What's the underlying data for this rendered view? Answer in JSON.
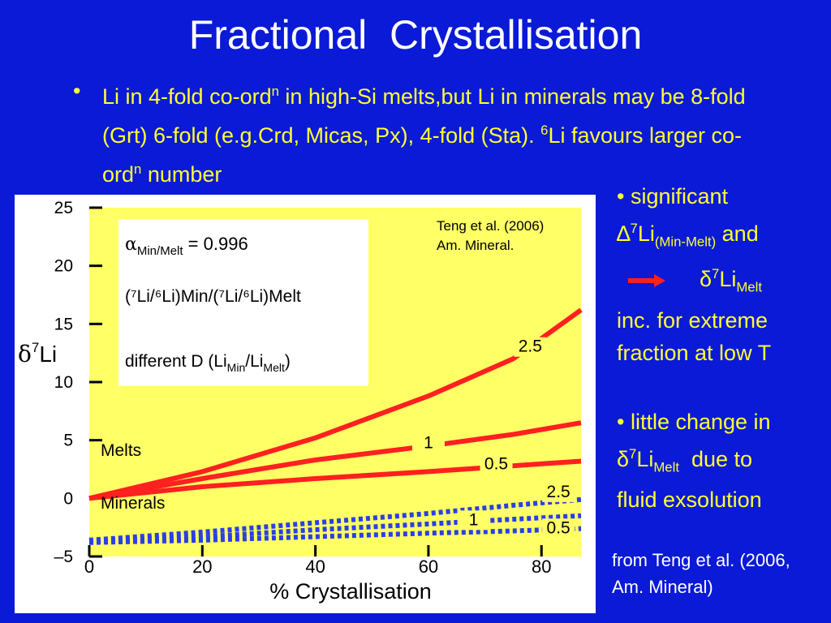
{
  "slide": {
    "title": "Fractional  Crystallisation",
    "bullet": {
      "p1": "Li in 4-fold co-ord",
      "p1_sup": "n",
      "p2": " in high-Si melts,but Li in minerals may be  8-fold (Grt) 6-fold (e.g.Crd, Micas, Px), 4-fold (Sta). ",
      "p3_sup": "6",
      "p3": "Li favours larger co-ord",
      "p4_sup": "n",
      "p4": " number"
    },
    "side1": {
      "line1": "• significant",
      "delta": "∆",
      "sup7": "7",
      "li": "Li",
      "sub": "(Min-Melt)",
      "and": " and",
      "d2": "δ",
      "sup7b": "7",
      "li2": "Li",
      "sub2": "Melt",
      "rest": "inc. for extreme fraction at low T"
    },
    "side2": {
      "line1": "• little change  in",
      "d": "δ",
      "sup7": "7",
      "li": "Li",
      "sub": "Melt",
      "rest1": "  due to",
      "rest2": "fluid exsolution"
    },
    "source": "from Teng et al. (2006, Am. Mineral)"
  },
  "chart_data": {
    "type": "line",
    "ylabel_delta": "δ",
    "ylabel_sup": "7",
    "ylabel_li": "Li",
    "xlabel": "% Crystallisation",
    "xlim": [
      0,
      87
    ],
    "ylim": [
      -5,
      25
    ],
    "xticks": [
      "0",
      "20",
      "40",
      "60",
      "80"
    ],
    "xtick_values": [
      0,
      20,
      40,
      60,
      80
    ],
    "yticks": [
      "25",
      "20",
      "15",
      "10",
      "5",
      "0",
      "–5"
    ],
    "ytick_values": [
      25,
      20,
      15,
      10,
      5,
      0,
      -5
    ],
    "citation1": "Teng et al. (2006)",
    "citation2": "Am. Mineral.",
    "legend": {
      "alpha": "α",
      "alpha_sub": "Min/Melt",
      "alpha_val": " = 0.996",
      "ratio": "(⁷Li/⁶Li)Min/(⁷Li/⁶Li)Melt",
      "diffD": "different D  (Li",
      "diffD_sub1": "Min",
      "diffD_mid": "/Li",
      "diffD_sub2": "Melt",
      "diffD_end": ")"
    },
    "group_labels": {
      "melts": "Melts",
      "minerals": "Minerals"
    },
    "colors": {
      "plot_bg": "#ffff66",
      "melt": "#ff2020",
      "mineral": "#2a3fe6"
    },
    "series": [
      {
        "name": "2.5",
        "group": "melt",
        "x": [
          0,
          20,
          40,
          60,
          75,
          87
        ],
        "y": [
          0,
          2.3,
          5.2,
          8.8,
          12.0,
          16.2
        ]
      },
      {
        "name": "1",
        "group": "melt",
        "x": [
          0,
          20,
          40,
          60,
          75,
          87
        ],
        "y": [
          0,
          1.7,
          3.3,
          4.5,
          5.5,
          6.5
        ]
      },
      {
        "name": "0.5",
        "group": "melt",
        "x": [
          0,
          20,
          40,
          60,
          75,
          87
        ],
        "y": [
          0,
          1.0,
          1.7,
          2.3,
          2.8,
          3.2
        ]
      },
      {
        "name": "2.5",
        "group": "mineral",
        "x": [
          0,
          20,
          40,
          60,
          75,
          87
        ],
        "y": [
          -3.6,
          -2.9,
          -2.1,
          -1.3,
          -0.6,
          -0.1
        ]
      },
      {
        "name": "1",
        "group": "mineral",
        "x": [
          0,
          20,
          40,
          60,
          75,
          87
        ],
        "y": [
          -3.7,
          -3.3,
          -2.7,
          -2.2,
          -1.8,
          -1.5
        ]
      },
      {
        "name": "0.5",
        "group": "mineral",
        "x": [
          0,
          20,
          40,
          60,
          75,
          87
        ],
        "y": [
          -3.8,
          -3.6,
          -3.3,
          -3.0,
          -2.8,
          -2.6
        ]
      }
    ]
  }
}
